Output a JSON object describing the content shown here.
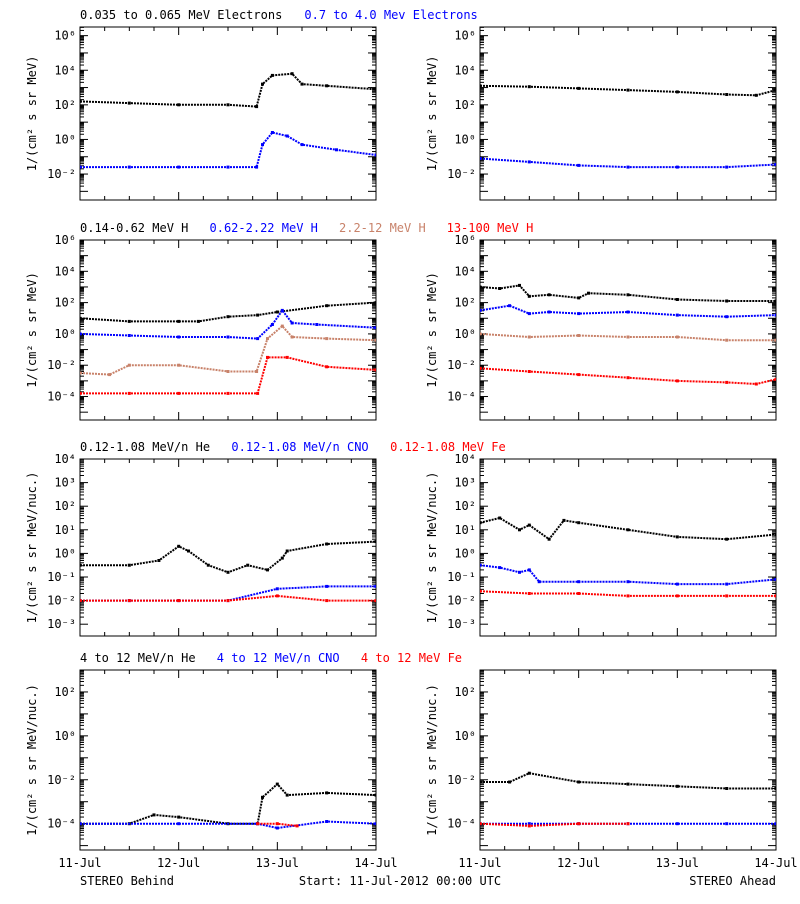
{
  "footer": {
    "left": "STEREO Behind",
    "center": "Start: 11-Jul-2012 00:00 UTC",
    "right": "STEREO Ahead"
  },
  "x_ticks": [
    "11-Jul",
    "12-Jul",
    "13-Jul",
    "14-Jul"
  ],
  "colors": {
    "black": "#000000",
    "blue": "#0000ff",
    "tan": "#c8826a",
    "red": "#ff0000"
  },
  "rows": [
    {
      "ylabel": "1/(cm² s sr MeV)",
      "yexp": [
        -2,
        0,
        2,
        4,
        6
      ],
      "ylog": [
        -3.5,
        6.5
      ],
      "legend": [
        {
          "text": "0.035 to 0.065 MeV Electrons",
          "color": "#000000"
        },
        {
          "text": "0.7 to 4.0 Mev Electrons",
          "color": "#0000ff"
        }
      ]
    },
    {
      "ylabel": "1/(cm² s sr MeV)",
      "yexp": [
        -4,
        -2,
        0,
        2,
        4,
        6
      ],
      "ylog": [
        -5.5,
        6.0
      ],
      "legend": [
        {
          "text": "0.14-0.62 MeV H",
          "color": "#000000"
        },
        {
          "text": "0.62-2.22 MeV H",
          "color": "#0000ff"
        },
        {
          "text": "2.2-12 MeV H",
          "color": "#c8826a"
        },
        {
          "text": "13-100 MeV H",
          "color": "#ff0000"
        }
      ]
    },
    {
      "ylabel": "1/(cm² s sr MeV/nuc.)",
      "yexp": [
        -3,
        -2,
        -1,
        0,
        1,
        2,
        3,
        4
      ],
      "ylog": [
        -3.5,
        4.0
      ],
      "legend": [
        {
          "text": "0.12-1.08 MeV/n He",
          "color": "#000000"
        },
        {
          "text": "0.12-1.08 MeV/n CNO",
          "color": "#0000ff"
        },
        {
          "text": "0.12-1.08 MeV Fe",
          "color": "#ff0000"
        }
      ]
    },
    {
      "ylabel": "1/(cm² s sr MeV/nuc.)",
      "yexp": [
        -4,
        -2,
        0,
        2
      ],
      "ylog": [
        -5.2,
        3.0
      ],
      "legend": [
        {
          "text": "4 to 12 MeV/n He",
          "color": "#000000"
        },
        {
          "text": "4 to 12 MeV/n CNO",
          "color": "#0000ff"
        },
        {
          "text": "4 to 12 MeV Fe",
          "color": "#ff0000"
        }
      ]
    }
  ],
  "chart_data": [
    {
      "type": "scatter",
      "panel": "row1-behind",
      "ylog": true,
      "x_unit": "days since 11-Jul-2012",
      "xlim": [
        0,
        3
      ],
      "series": [
        {
          "name": "0.035 to 0.065 MeV Electrons",
          "color": "#000000",
          "x": [
            0,
            0.5,
            1.0,
            1.5,
            1.79,
            1.85,
            1.95,
            2.15,
            2.25,
            2.5,
            3.0
          ],
          "y": [
            2.2,
            2.1,
            2.0,
            2.0,
            1.9,
            3.2,
            3.7,
            3.8,
            3.2,
            3.1,
            2.9
          ]
        },
        {
          "name": "0.7 to 4.0 Mev Electrons",
          "color": "#0000ff",
          "x": [
            0,
            0.5,
            1.0,
            1.5,
            1.79,
            1.85,
            1.95,
            2.1,
            2.25,
            2.6,
            3.0
          ],
          "y": [
            -1.6,
            -1.6,
            -1.6,
            -1.6,
            -1.6,
            -0.3,
            0.4,
            0.2,
            -0.3,
            -0.6,
            -0.9
          ]
        }
      ]
    },
    {
      "type": "scatter",
      "panel": "row1-ahead",
      "ylog": true,
      "x_unit": "days since 11-Jul-2012",
      "xlim": [
        0,
        3
      ],
      "series": [
        {
          "name": "0.035 to 0.065 MeV Electrons",
          "color": "#000000",
          "x": [
            0,
            0.5,
            1.0,
            1.5,
            2.0,
            2.5,
            2.8,
            3.0
          ],
          "y": [
            3.1,
            3.05,
            2.95,
            2.85,
            2.75,
            2.6,
            2.55,
            2.85
          ]
        },
        {
          "name": "0.7 to 4.0 Mev Electrons",
          "color": "#0000ff",
          "x": [
            0,
            0.5,
            1.0,
            1.5,
            2.0,
            2.5,
            3.0
          ],
          "y": [
            -1.1,
            -1.3,
            -1.5,
            -1.6,
            -1.6,
            -1.6,
            -1.45
          ]
        }
      ]
    },
    {
      "type": "scatter",
      "panel": "row2-behind",
      "ylog": true,
      "x_unit": "days since 11-Jul-2012",
      "xlim": [
        0,
        3
      ],
      "series": [
        {
          "name": "0.14-0.62 MeV H",
          "color": "#000000",
          "x": [
            0,
            0.5,
            1.0,
            1.2,
            1.5,
            1.8,
            2.0,
            2.5,
            3.0
          ],
          "y": [
            1.0,
            0.8,
            0.8,
            0.8,
            1.1,
            1.2,
            1.4,
            1.8,
            2.0
          ]
        },
        {
          "name": "0.62-2.22 MeV H",
          "color": "#0000ff",
          "x": [
            0,
            0.5,
            1.0,
            1.5,
            1.8,
            1.95,
            2.05,
            2.15,
            2.4,
            3.0
          ],
          "y": [
            0.0,
            -0.1,
            -0.2,
            -0.2,
            -0.3,
            0.6,
            1.5,
            0.7,
            0.6,
            0.4
          ]
        },
        {
          "name": "2.2-12 MeV H",
          "color": "#c8826a",
          "x": [
            0,
            0.3,
            0.5,
            1.0,
            1.5,
            1.79,
            1.9,
            2.05,
            2.15,
            2.5,
            3.0
          ],
          "y": [
            -2.5,
            -2.6,
            -2.0,
            -2.0,
            -2.4,
            -2.4,
            -0.3,
            0.5,
            -0.2,
            -0.3,
            -0.4
          ]
        },
        {
          "name": "13-100 MeV H",
          "color": "#ff0000",
          "x": [
            0,
            0.5,
            1.0,
            1.5,
            1.8,
            1.9,
            2.1,
            2.5,
            3.0
          ],
          "y": [
            -3.8,
            -3.8,
            -3.8,
            -3.8,
            -3.8,
            -1.5,
            -1.5,
            -2.1,
            -2.3
          ]
        }
      ]
    },
    {
      "type": "scatter",
      "panel": "row2-ahead",
      "ylog": true,
      "x_unit": "days since 11-Jul-2012",
      "xlim": [
        0,
        3
      ],
      "series": [
        {
          "name": "0.14-0.62 MeV H",
          "color": "#000000",
          "x": [
            0,
            0.2,
            0.4,
            0.5,
            0.7,
            1.0,
            1.1,
            1.5,
            2.0,
            2.5,
            3.0
          ],
          "y": [
            3.0,
            2.9,
            3.1,
            2.4,
            2.5,
            2.3,
            2.6,
            2.5,
            2.2,
            2.1,
            2.1
          ]
        },
        {
          "name": "0.62-2.22 MeV H",
          "color": "#0000ff",
          "x": [
            0,
            0.3,
            0.5,
            0.7,
            1.0,
            1.5,
            2.0,
            2.5,
            3.0
          ],
          "y": [
            1.5,
            1.8,
            1.3,
            1.4,
            1.3,
            1.4,
            1.2,
            1.1,
            1.2
          ]
        },
        {
          "name": "2.2-12 MeV H",
          "color": "#c8826a",
          "x": [
            0,
            0.5,
            1.0,
            1.5,
            2.0,
            2.5,
            3.0
          ],
          "y": [
            0.0,
            -0.2,
            -0.1,
            -0.2,
            -0.2,
            -0.4,
            -0.4
          ]
        },
        {
          "name": "13-100 MeV H",
          "color": "#ff0000",
          "x": [
            0,
            0.5,
            1.0,
            1.5,
            2.0,
            2.5,
            2.8,
            3.0
          ],
          "y": [
            -2.2,
            -2.4,
            -2.6,
            -2.8,
            -3.0,
            -3.1,
            -3.2,
            -2.9
          ]
        }
      ]
    },
    {
      "type": "scatter",
      "panel": "row3-behind",
      "ylog": true,
      "x_unit": "days since 11-Jul-2012",
      "xlim": [
        0,
        3
      ],
      "series": [
        {
          "name": "0.12-1.08 MeV/n He",
          "color": "#000000",
          "x": [
            0,
            0.5,
            0.8,
            1.0,
            1.1,
            1.3,
            1.5,
            1.7,
            1.9,
            2.05,
            2.1,
            2.5,
            3.0
          ],
          "y": [
            -0.5,
            -0.5,
            -0.3,
            0.3,
            0.1,
            -0.5,
            -0.8,
            -0.5,
            -0.7,
            -0.2,
            0.1,
            0.4,
            0.5
          ]
        },
        {
          "name": "0.12-1.08 MeV/n CNO",
          "color": "#0000ff",
          "x": [
            0,
            0.5,
            1.0,
            1.5,
            2.0,
            2.5,
            3.0
          ],
          "y": [
            -2.0,
            -2.0,
            -2.0,
            -2.0,
            -1.5,
            -1.4,
            -1.4
          ]
        },
        {
          "name": "0.12-1.08 MeV Fe",
          "color": "#ff0000",
          "x": [
            0,
            0.5,
            1.0,
            1.5,
            2.0,
            2.5,
            3.0
          ],
          "y": [
            -2.0,
            -2.0,
            -2.0,
            -2.0,
            -1.8,
            -2.0,
            -2.0
          ]
        }
      ]
    },
    {
      "type": "scatter",
      "panel": "row3-ahead",
      "ylog": true,
      "x_unit": "days since 11-Jul-2012",
      "xlim": [
        0,
        3
      ],
      "series": [
        {
          "name": "0.12-1.08 MeV/n He",
          "color": "#000000",
          "x": [
            0,
            0.2,
            0.4,
            0.5,
            0.7,
            0.85,
            1.0,
            1.5,
            2.0,
            2.5,
            3.0
          ],
          "y": [
            1.3,
            1.5,
            1.0,
            1.2,
            0.6,
            1.4,
            1.3,
            1.0,
            0.7,
            0.6,
            0.8
          ]
        },
        {
          "name": "0.12-1.08 MeV/n CNO",
          "color": "#0000ff",
          "x": [
            0,
            0.2,
            0.4,
            0.5,
            0.6,
            1.0,
            1.5,
            2.0,
            2.5,
            3.0
          ],
          "y": [
            -0.5,
            -0.6,
            -0.8,
            -0.7,
            -1.2,
            -1.2,
            -1.2,
            -1.3,
            -1.3,
            -1.1
          ]
        },
        {
          "name": "0.12-1.08 MeV Fe",
          "color": "#ff0000",
          "x": [
            0,
            0.5,
            1.0,
            1.5,
            2.0,
            2.5,
            3.0
          ],
          "y": [
            -1.6,
            -1.7,
            -1.7,
            -1.8,
            -1.8,
            -1.8,
            -1.8
          ]
        }
      ]
    },
    {
      "type": "scatter",
      "panel": "row4-behind",
      "ylog": true,
      "x_unit": "days since 11-Jul-2012",
      "xlim": [
        0,
        3
      ],
      "series": [
        {
          "name": "4 to 12 MeV/n He",
          "color": "#000000",
          "x": [
            0,
            0.5,
            0.75,
            1.0,
            1.5,
            1.8,
            1.85,
            2.0,
            2.1,
            2.5,
            3.0
          ],
          "y": [
            -4.0,
            -4.0,
            -3.6,
            -3.7,
            -4.0,
            -4.0,
            -2.8,
            -2.2,
            -2.7,
            -2.6,
            -2.7
          ]
        },
        {
          "name": "4 to 12 MeV/n CNO",
          "color": "#0000ff",
          "x": [
            0,
            1.0,
            1.8,
            2.0,
            2.5,
            3.0
          ],
          "y": [
            -4.0,
            -4.0,
            -4.0,
            -4.2,
            -3.9,
            -4.0
          ]
        },
        {
          "name": "4 to 12 MeV Fe",
          "color": "#ff0000",
          "x": [
            1.8,
            2.0,
            2.2
          ],
          "y": [
            -4.0,
            -4.0,
            -4.1
          ]
        }
      ]
    },
    {
      "type": "scatter",
      "panel": "row4-ahead",
      "ylog": true,
      "x_unit": "days since 11-Jul-2012",
      "xlim": [
        0,
        3
      ],
      "series": [
        {
          "name": "4 to 12 MeV/n He",
          "color": "#000000",
          "x": [
            0,
            0.3,
            0.5,
            1.0,
            1.5,
            2.0,
            2.5,
            3.0
          ],
          "y": [
            -2.1,
            -2.1,
            -1.7,
            -2.1,
            -2.2,
            -2.3,
            -2.4,
            -2.4
          ]
        },
        {
          "name": "4 to 12 MeV/n CNO",
          "color": "#0000ff",
          "x": [
            0,
            0.5,
            1.0,
            1.5,
            2.0,
            2.5,
            3.0
          ],
          "y": [
            -4.0,
            -4.0,
            -4.0,
            -4.0,
            -4.0,
            -4.0,
            -4.0
          ]
        },
        {
          "name": "4 to 12 MeV Fe",
          "color": "#ff0000",
          "x": [
            0,
            0.5,
            1.0,
            1.5
          ],
          "y": [
            -4.0,
            -4.1,
            -4.0,
            -4.0
          ]
        }
      ]
    }
  ]
}
